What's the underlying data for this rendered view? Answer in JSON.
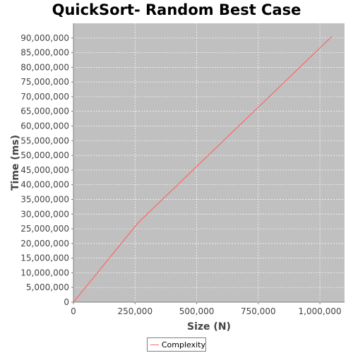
{
  "chart_data": {
    "type": "line",
    "title": "QuickSort- Random Best Case",
    "xlabel": "Size (N)",
    "ylabel": "Time (ms)",
    "xlim": [
      0,
      1100000
    ],
    "ylim": [
      0,
      95000000
    ],
    "x_ticks": [
      0,
      250000,
      500000,
      750000,
      1000000
    ],
    "x_tick_labels": [
      "0",
      "250,000",
      "500,000",
      "750,000",
      "1,000,000"
    ],
    "y_ticks": [
      0,
      5000000,
      10000000,
      15000000,
      20000000,
      25000000,
      30000000,
      35000000,
      40000000,
      45000000,
      50000000,
      55000000,
      60000000,
      65000000,
      70000000,
      75000000,
      80000000,
      85000000,
      90000000
    ],
    "y_tick_labels": [
      "0",
      "5,000,000",
      "10,000,000",
      "15,000,000",
      "20,000,000",
      "25,000,000",
      "30,000,000",
      "35,000,000",
      "40,000,000",
      "45,000,000",
      "50,000,000",
      "55,000,000",
      "60,000,000",
      "65,000,000",
      "70,000,000",
      "75,000,000",
      "80,000,000",
      "85,000,000",
      "90,000,000"
    ],
    "grid": true,
    "legend_position": "bottom",
    "plot_background": "#c0c0c0",
    "series": [
      {
        "name": "Complexity",
        "color": "#ff6666",
        "x": [
          0,
          262144,
          1048576
        ],
        "y": [
          0,
          27000000,
          90500000
        ]
      }
    ]
  }
}
